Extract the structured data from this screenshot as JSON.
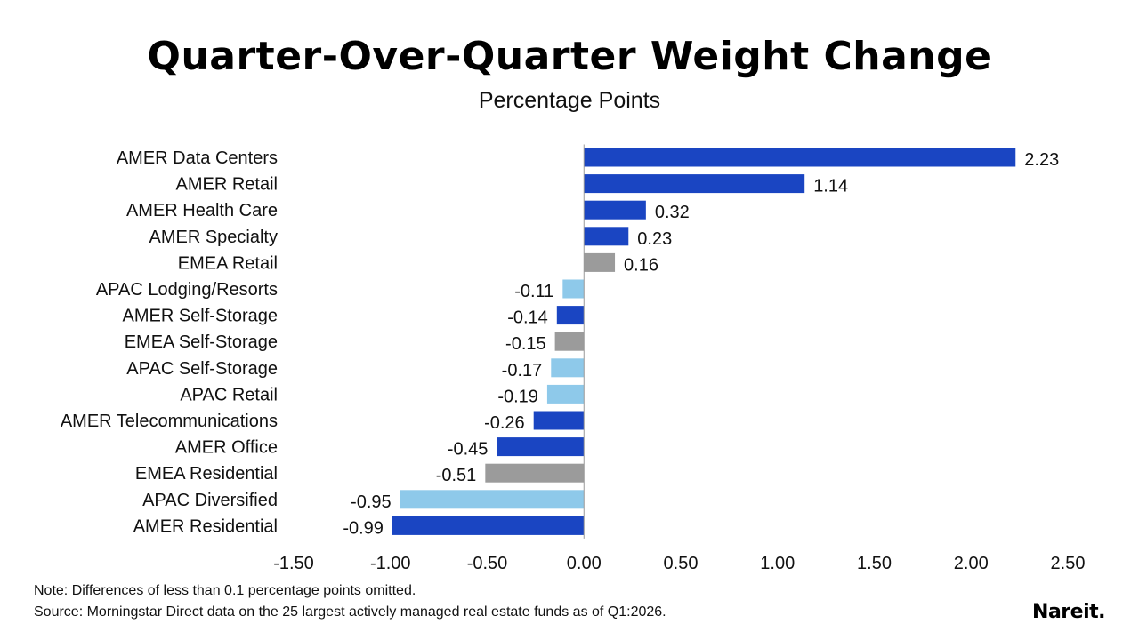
{
  "chart_data": {
    "type": "bar",
    "orientation": "horizontal",
    "title": "Quarter-Over-Quarter Weight Change",
    "subtitle": "Percentage Points",
    "categories": [
      "AMER Data Centers",
      "AMER Retail",
      "AMER Health Care",
      "AMER Specialty",
      "EMEA Retail",
      "APAC Lodging/Resorts",
      "AMER Self-Storage",
      "EMEA Self-Storage",
      "APAC Self-Storage",
      "APAC Retail",
      "AMER Telecommunications",
      "AMER Office",
      "EMEA Residential",
      "APAC Diversified",
      "AMER Residential"
    ],
    "values": [
      2.23,
      1.14,
      0.32,
      0.23,
      0.16,
      -0.11,
      -0.14,
      -0.15,
      -0.17,
      -0.19,
      -0.26,
      -0.45,
      -0.51,
      -0.95,
      -0.99
    ],
    "value_labels": [
      "2.23",
      "1.14",
      "0.32",
      "0.23",
      "0.16",
      "-0.11",
      "-0.14",
      "-0.15",
      "-0.17",
      "-0.19",
      "-0.26",
      "-0.45",
      "-0.51",
      "-0.95",
      "-0.99"
    ],
    "bar_colors": [
      "#1a45c2",
      "#1a45c2",
      "#1a45c2",
      "#1a45c2",
      "#9b9b9b",
      "#8ec9ea",
      "#1a45c2",
      "#9b9b9b",
      "#8ec9ea",
      "#8ec9ea",
      "#1a45c2",
      "#1a45c2",
      "#9b9b9b",
      "#8ec9ea",
      "#1a45c2"
    ],
    "xlim": [
      -1.5,
      2.5
    ],
    "xticks": [
      "-1.50",
      "-1.00",
      "-0.50",
      "0.00",
      "0.50",
      "1.00",
      "1.50",
      "2.00",
      "2.50"
    ],
    "xtick_values": [
      -1.5,
      -1.0,
      -0.5,
      0.0,
      0.5,
      1.0,
      1.5,
      2.0,
      2.5
    ],
    "grid": false,
    "legend": "none"
  },
  "notes": {
    "note": "Note: Differences of less than 0.1 percentage points omitted.",
    "source": "Source: Morningstar Direct data on the 25 largest actively managed real estate funds as of Q1:2026."
  },
  "logo": "Nareit."
}
